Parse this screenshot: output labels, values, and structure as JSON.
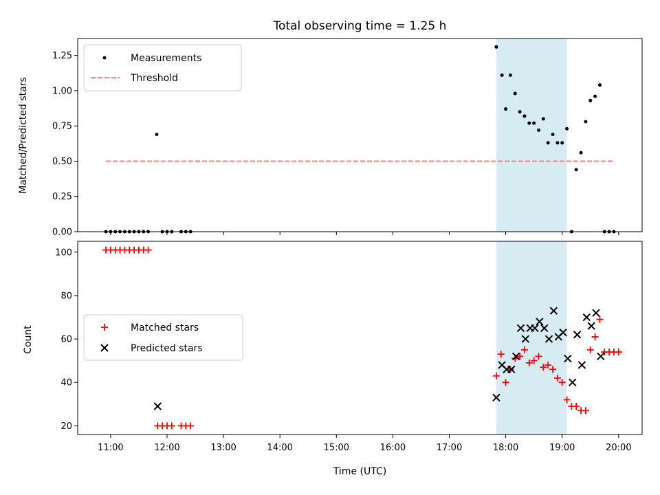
{
  "chart_data": {
    "title": "Total observing time = 1.25 h",
    "xlabel": "Time (UTC)",
    "xlim": [
      "10:25",
      "20:25"
    ],
    "x_ticks": [
      "11:00",
      "12:00",
      "13:00",
      "14:00",
      "15:00",
      "16:00",
      "17:00",
      "18:00",
      "19:00",
      "20:00"
    ],
    "highlight_span": [
      "17:50",
      "19:05"
    ],
    "colors": {
      "span": "#add8e6",
      "matched": "#ff0000",
      "predicted": "#000000",
      "threshold": "#ff7f7f",
      "measure": "#000000"
    },
    "panels": [
      {
        "type": "scatter",
        "ylabel": "Matched/Predicted stars",
        "ylim": [
          0,
          1.37
        ],
        "y_ticks": [
          "0.00",
          "0.25",
          "0.50",
          "0.75",
          "1.00",
          "1.25"
        ],
        "legend_placement": "upper-left",
        "series": [
          {
            "name": "Measurements",
            "marker": "dot",
            "points": [
              [
                "10:55",
                0
              ],
              [
                "11:00",
                0
              ],
              [
                "11:05",
                0
              ],
              [
                "11:10",
                0
              ],
              [
                "11:15",
                0
              ],
              [
                "11:20",
                0
              ],
              [
                "11:25",
                0
              ],
              [
                "11:30",
                0
              ],
              [
                "11:35",
                0
              ],
              [
                "11:40",
                0
              ],
              [
                "11:49",
                0.69
              ],
              [
                "11:55",
                0
              ],
              [
                "12:00",
                0
              ],
              [
                "12:05",
                0
              ],
              [
                "12:15",
                0
              ],
              [
                "12:20",
                0
              ],
              [
                "12:25",
                0
              ],
              [
                "17:50",
                1.31
              ],
              [
                "17:56",
                1.11
              ],
              [
                "18:00",
                0.87
              ],
              [
                "18:05",
                1.11
              ],
              [
                "18:10",
                0.98
              ],
              [
                "18:15",
                0.85
              ],
              [
                "18:20",
                0.82
              ],
              [
                "18:25",
                0.77
              ],
              [
                "18:30",
                0.77
              ],
              [
                "18:35",
                0.72
              ],
              [
                "18:40",
                0.8
              ],
              [
                "18:45",
                0.63
              ],
              [
                "18:50",
                0.69
              ],
              [
                "18:55",
                0.63
              ],
              [
                "19:00",
                0.63
              ],
              [
                "19:05",
                0.73
              ],
              [
                "19:10",
                0
              ],
              [
                "19:15",
                0.44
              ],
              [
                "19:20",
                0.56
              ],
              [
                "19:25",
                0.78
              ],
              [
                "19:30",
                0.93
              ],
              [
                "19:35",
                0.96
              ],
              [
                "19:40",
                1.04
              ],
              [
                "19:45",
                0
              ],
              [
                "19:50",
                0
              ],
              [
                "19:55",
                0
              ]
            ]
          },
          {
            "name": "Threshold",
            "marker": "dashed-line",
            "points": [
              [
                "10:55",
                0.5
              ],
              [
                "19:55",
                0.5
              ]
            ]
          }
        ]
      },
      {
        "type": "scatter",
        "ylabel": "Count",
        "ylim": [
          16,
          105
        ],
        "y_ticks": [
          "20",
          "40",
          "60",
          "80",
          "100"
        ],
        "legend_placement": "center-left",
        "series": [
          {
            "name": "Matched stars",
            "marker": "plus",
            "points": [
              [
                "10:55",
                101
              ],
              [
                "11:00",
                101
              ],
              [
                "11:05",
                101
              ],
              [
                "11:10",
                101
              ],
              [
                "11:15",
                101
              ],
              [
                "11:20",
                101
              ],
              [
                "11:25",
                101
              ],
              [
                "11:30",
                101
              ],
              [
                "11:35",
                101
              ],
              [
                "11:40",
                101
              ],
              [
                "11:50",
                20
              ],
              [
                "11:55",
                20
              ],
              [
                "12:00",
                20
              ],
              [
                "12:05",
                20
              ],
              [
                "12:15",
                20
              ],
              [
                "12:20",
                20
              ],
              [
                "12:25",
                20
              ],
              [
                "17:50",
                43
              ],
              [
                "17:55",
                53
              ],
              [
                "18:00",
                40
              ],
              [
                "18:05",
                46
              ],
              [
                "18:10",
                51
              ],
              [
                "18:15",
                52
              ],
              [
                "18:20",
                55
              ],
              [
                "18:25",
                49
              ],
              [
                "18:30",
                50
              ],
              [
                "18:35",
                52
              ],
              [
                "18:40",
                47
              ],
              [
                "18:45",
                48
              ],
              [
                "18:50",
                46
              ],
              [
                "18:55",
                42
              ],
              [
                "19:00",
                40
              ],
              [
                "19:05",
                32
              ],
              [
                "19:10",
                29
              ],
              [
                "19:15",
                29
              ],
              [
                "19:20",
                27
              ],
              [
                "19:25",
                27
              ],
              [
                "19:30",
                55
              ],
              [
                "19:35",
                61
              ],
              [
                "19:40",
                69
              ],
              [
                "19:45",
                54
              ],
              [
                "19:50",
                54
              ],
              [
                "19:55",
                54
              ],
              [
                "20:00",
                54
              ]
            ]
          },
          {
            "name": "Predicted stars",
            "marker": "x",
            "points": [
              [
                "11:50",
                29
              ],
              [
                "17:50",
                33
              ],
              [
                "17:56",
                48
              ],
              [
                "18:01",
                46
              ],
              [
                "18:06",
                46
              ],
              [
                "18:11",
                52
              ],
              [
                "18:16",
                65
              ],
              [
                "18:21",
                60
              ],
              [
                "18:26",
                65
              ],
              [
                "18:31",
                65
              ],
              [
                "18:36",
                68
              ],
              [
                "18:41",
                65
              ],
              [
                "18:46",
                60
              ],
              [
                "18:51",
                73
              ],
              [
                "18:56",
                61
              ],
              [
                "19:01",
                63
              ],
              [
                "19:06",
                51
              ],
              [
                "19:11",
                40
              ],
              [
                "19:16",
                62
              ],
              [
                "19:21",
                48
              ],
              [
                "19:26",
                70
              ],
              [
                "19:31",
                66
              ],
              [
                "19:36",
                72
              ],
              [
                "19:41",
                52
              ]
            ]
          }
        ]
      }
    ]
  }
}
